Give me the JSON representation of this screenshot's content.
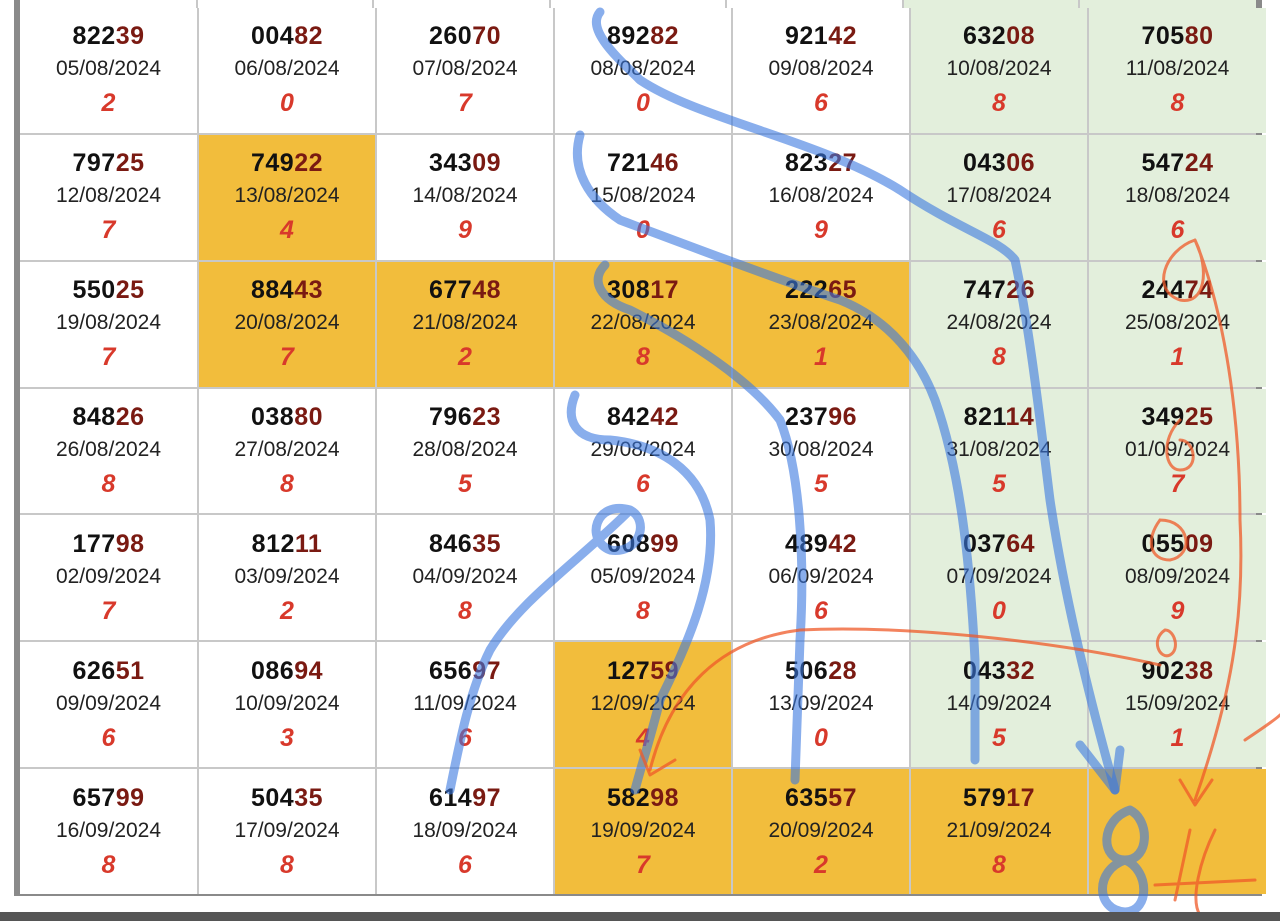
{
  "grid": {
    "columns": 7,
    "cells": [
      {
        "head": "822",
        "tail": "39",
        "date": "05/08/2024",
        "digit": "2",
        "style": "plain"
      },
      {
        "head": "004",
        "tail": "82",
        "date": "06/08/2024",
        "digit": "0",
        "style": "plain"
      },
      {
        "head": "260",
        "tail": "70",
        "date": "07/08/2024",
        "digit": "7",
        "style": "plain"
      },
      {
        "head": "892",
        "tail": "82",
        "date": "08/08/2024",
        "digit": "0",
        "style": "plain"
      },
      {
        "head": "921",
        "tail": "42",
        "date": "09/08/2024",
        "digit": "6",
        "style": "plain"
      },
      {
        "head": "632",
        "tail": "08",
        "date": "10/08/2024",
        "digit": "8",
        "style": "weekend"
      },
      {
        "head": "705",
        "tail": "80",
        "date": "11/08/2024",
        "digit": "8",
        "style": "weekend"
      },
      {
        "head": "797",
        "tail": "25",
        "date": "12/08/2024",
        "digit": "7",
        "style": "plain"
      },
      {
        "head": "749",
        "tail": "22",
        "date": "13/08/2024",
        "digit": "4",
        "style": "hl"
      },
      {
        "head": "343",
        "tail": "09",
        "date": "14/08/2024",
        "digit": "9",
        "style": "plain"
      },
      {
        "head": "721",
        "tail": "46",
        "date": "15/08/2024",
        "digit": "0",
        "style": "plain"
      },
      {
        "head": "823",
        "tail": "27",
        "date": "16/08/2024",
        "digit": "9",
        "style": "plain"
      },
      {
        "head": "043",
        "tail": "06",
        "date": "17/08/2024",
        "digit": "6",
        "style": "weekend"
      },
      {
        "head": "547",
        "tail": "24",
        "date": "18/08/2024",
        "digit": "6",
        "style": "weekend"
      },
      {
        "head": "550",
        "tail": "25",
        "date": "19/08/2024",
        "digit": "7",
        "style": "plain"
      },
      {
        "head": "884",
        "tail": "43",
        "date": "20/08/2024",
        "digit": "7",
        "style": "hl"
      },
      {
        "head": "677",
        "tail": "48",
        "date": "21/08/2024",
        "digit": "2",
        "style": "hl"
      },
      {
        "head": "308",
        "tail": "17",
        "date": "22/08/2024",
        "digit": "8",
        "style": "hl"
      },
      {
        "head": "222",
        "tail": "65",
        "date": "23/08/2024",
        "digit": "1",
        "style": "hl"
      },
      {
        "head": "747",
        "tail": "26",
        "date": "24/08/2024",
        "digit": "8",
        "style": "weekend"
      },
      {
        "head": "244",
        "tail": "74",
        "date": "25/08/2024",
        "digit": "1",
        "style": "weekend"
      },
      {
        "head": "848",
        "tail": "26",
        "date": "26/08/2024",
        "digit": "8",
        "style": "plain"
      },
      {
        "head": "038",
        "tail": "80",
        "date": "27/08/2024",
        "digit": "8",
        "style": "plain"
      },
      {
        "head": "796",
        "tail": "23",
        "date": "28/08/2024",
        "digit": "5",
        "style": "plain"
      },
      {
        "head": "842",
        "tail": "42",
        "date": "29/08/2024",
        "digit": "6",
        "style": "plain"
      },
      {
        "head": "237",
        "tail": "96",
        "date": "30/08/2024",
        "digit": "5",
        "style": "plain"
      },
      {
        "head": "821",
        "tail": "14",
        "date": "31/08/2024",
        "digit": "5",
        "style": "weekend"
      },
      {
        "head": "349",
        "tail": "25",
        "date": "01/09/2024",
        "digit": "7",
        "style": "weekend"
      },
      {
        "head": "177",
        "tail": "98",
        "date": "02/09/2024",
        "digit": "7",
        "style": "plain"
      },
      {
        "head": "812",
        "tail": "11",
        "date": "03/09/2024",
        "digit": "2",
        "style": "plain"
      },
      {
        "head": "846",
        "tail": "35",
        "date": "04/09/2024",
        "digit": "8",
        "style": "plain"
      },
      {
        "head": "608",
        "tail": "99",
        "date": "05/09/2024",
        "digit": "8",
        "style": "plain"
      },
      {
        "head": "489",
        "tail": "42",
        "date": "06/09/2024",
        "digit": "6",
        "style": "plain"
      },
      {
        "head": "037",
        "tail": "64",
        "date": "07/09/2024",
        "digit": "0",
        "style": "weekend"
      },
      {
        "head": "055",
        "tail": "09",
        "date": "08/09/2024",
        "digit": "9",
        "style": "weekend"
      },
      {
        "head": "626",
        "tail": "51",
        "date": "09/09/2024",
        "digit": "6",
        "style": "plain"
      },
      {
        "head": "086",
        "tail": "94",
        "date": "10/09/2024",
        "digit": "3",
        "style": "plain"
      },
      {
        "head": "656",
        "tail": "97",
        "date": "11/09/2024",
        "digit": "6",
        "style": "plain"
      },
      {
        "head": "127",
        "tail": "59",
        "date": "12/09/2024",
        "digit": "4",
        "style": "hl"
      },
      {
        "head": "506",
        "tail": "28",
        "date": "13/09/2024",
        "digit": "0",
        "style": "plain"
      },
      {
        "head": "043",
        "tail": "32",
        "date": "14/09/2024",
        "digit": "5",
        "style": "weekend"
      },
      {
        "head": "902",
        "tail": "38",
        "date": "15/09/2024",
        "digit": "1",
        "style": "weekend"
      },
      {
        "head": "657",
        "tail": "99",
        "date": "16/09/2024",
        "digit": "8",
        "style": "plain"
      },
      {
        "head": "504",
        "tail": "35",
        "date": "17/09/2024",
        "digit": "8",
        "style": "plain"
      },
      {
        "head": "614",
        "tail": "97",
        "date": "18/09/2024",
        "digit": "6",
        "style": "plain"
      },
      {
        "head": "582",
        "tail": "98",
        "date": "19/09/2024",
        "digit": "7",
        "style": "hl"
      },
      {
        "head": "635",
        "tail": "57",
        "date": "20/09/2024",
        "digit": "2",
        "style": "hl"
      },
      {
        "head": "579",
        "tail": "17",
        "date": "21/09/2024",
        "digit": "8",
        "style": "hl"
      },
      {
        "head": "",
        "tail": "",
        "date": "",
        "digit": "",
        "style": "hl"
      }
    ]
  },
  "annotations": {
    "blue_color": "#3a78e0",
    "orange_color": "#ef5a28",
    "handwritten_prediction": "84"
  }
}
